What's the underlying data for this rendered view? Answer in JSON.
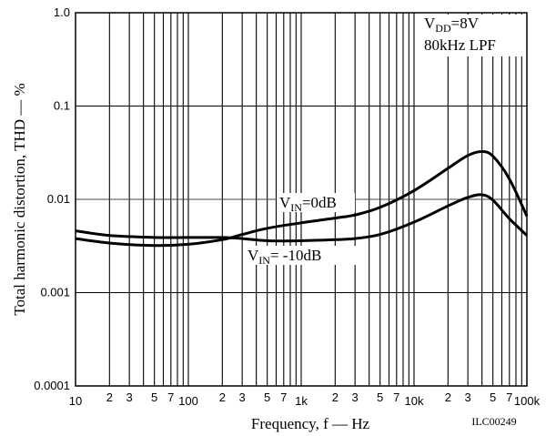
{
  "chart_data": {
    "type": "line",
    "x_scale": "log",
    "y_scale": "log",
    "xlim": [
      10,
      100000
    ],
    "ylim": [
      0.0001,
      1.0
    ],
    "xlabel": "Frequency, f — Hz",
    "ylabel": "Total harmonic distortion, THD — %",
    "grid": true,
    "x_major_ticks": [
      {
        "value": 10,
        "label": "10"
      },
      {
        "value": 100,
        "label": "100"
      },
      {
        "value": 1000,
        "label": "1k"
      },
      {
        "value": 10000,
        "label": "10k"
      },
      {
        "value": 100000,
        "label": "100k"
      }
    ],
    "x_minor_labels": [
      "2",
      "3",
      "5",
      "7"
    ],
    "y_ticks": [
      {
        "value": 1.0,
        "label": "1.0"
      },
      {
        "value": 0.1,
        "label": "0.1"
      },
      {
        "value": 0.01,
        "label": "0.01"
      },
      {
        "value": 0.001,
        "label": "0.001"
      },
      {
        "value": 0.0001,
        "label": "0.0001"
      }
    ],
    "annotations": [
      {
        "main": "V",
        "sub": "DD",
        "rest": "=8V"
      },
      {
        "main": "80kHz LPF",
        "sub": "",
        "rest": ""
      }
    ],
    "series": [
      {
        "label": {
          "main": "V",
          "sub": "IN",
          "rest": "=0dB"
        },
        "x": [
          10,
          20,
          50,
          100,
          200,
          300,
          500,
          1000,
          2000,
          3000,
          5000,
          10000,
          20000,
          30000,
          40000,
          50000,
          70000,
          100000
        ],
        "y": [
          0.0038,
          0.0034,
          0.0032,
          0.0033,
          0.0037,
          0.0042,
          0.0049,
          0.0056,
          0.0063,
          0.0068,
          0.0082,
          0.0124,
          0.0215,
          0.0295,
          0.0325,
          0.029,
          0.0165,
          0.0066
        ]
      },
      {
        "label": {
          "main": "V",
          "sub": "IN",
          "rest": "= -10dB"
        },
        "x": [
          10,
          20,
          50,
          100,
          200,
          300,
          500,
          1000,
          2000,
          3000,
          5000,
          10000,
          20000,
          30000,
          40000,
          50000,
          70000,
          100000
        ],
        "y": [
          0.0046,
          0.0041,
          0.0039,
          0.0039,
          0.0039,
          0.0038,
          0.0036,
          0.0036,
          0.0037,
          0.0038,
          0.0042,
          0.0057,
          0.0085,
          0.0105,
          0.0112,
          0.0098,
          0.0062,
          0.0041
        ]
      }
    ]
  },
  "figure_code": "ILC00249"
}
